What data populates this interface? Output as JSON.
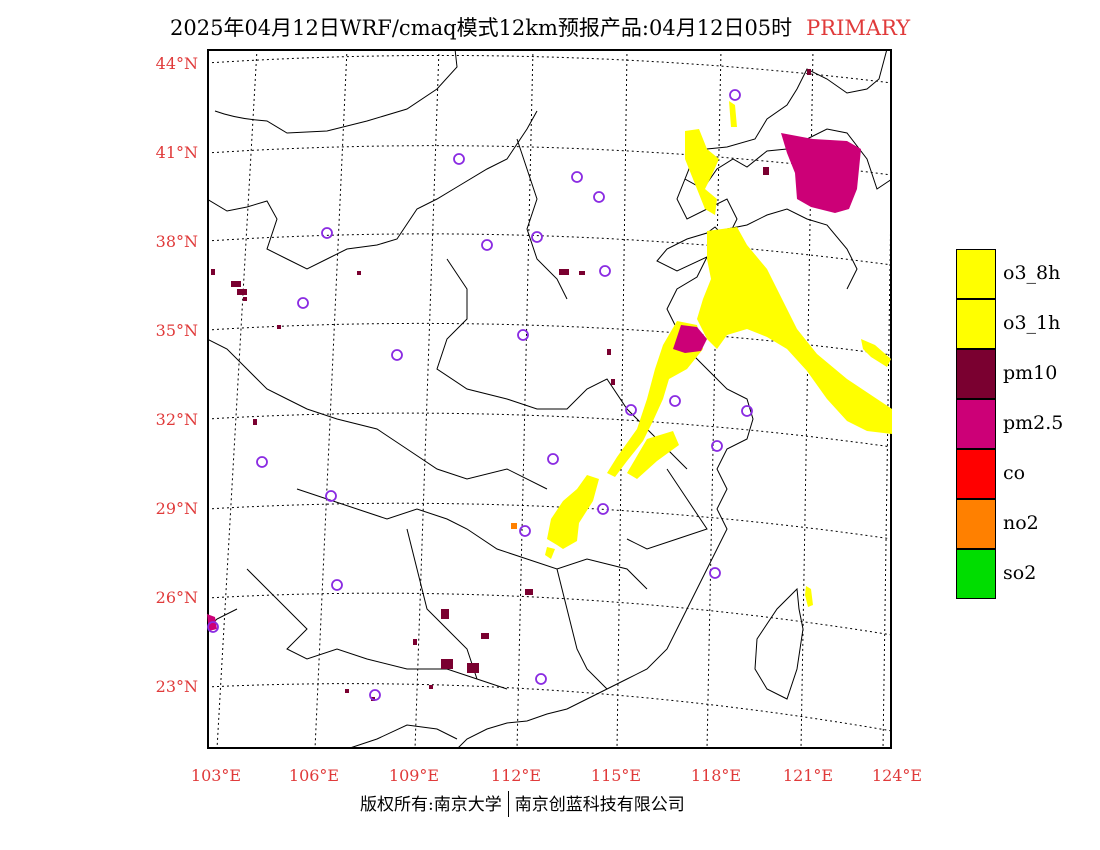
{
  "header": {
    "title": "2025年04月12日WRF/cmaq模式12km预报产品:04月12日05时",
    "tag": "PRIMARY"
  },
  "axes": {
    "lat_labels": [
      "44°N",
      "41°N",
      "38°N",
      "35°N",
      "32°N",
      "29°N",
      "26°N",
      "23°N"
    ],
    "lon_labels": [
      "103°E",
      "106°E",
      "109°E",
      "112°E",
      "115°E",
      "118°E",
      "121°E",
      "124°E"
    ]
  },
  "legend": [
    {
      "label": "o3_8h",
      "color": "#ffff00"
    },
    {
      "label": "o3_1h",
      "color": "#ffff00"
    },
    {
      "label": "pm10",
      "color": "#7a0030"
    },
    {
      "label": "pm2.5",
      "color": "#cc0077"
    },
    {
      "label": "co",
      "color": "#ff0000"
    },
    {
      "label": "no2",
      "color": "#ff8000"
    },
    {
      "label": "so2",
      "color": "#00dd00"
    }
  ],
  "footer": {
    "copyright": "版权所有:南京大学",
    "company": "南京创蓝科技有限公司"
  },
  "colors": {
    "o3": "#ffff00",
    "pm10": "#7a0030",
    "pm25": "#cc0077",
    "no2": "#ff8000",
    "station": "#8a2be2",
    "label_red": "#e03a3a"
  }
}
